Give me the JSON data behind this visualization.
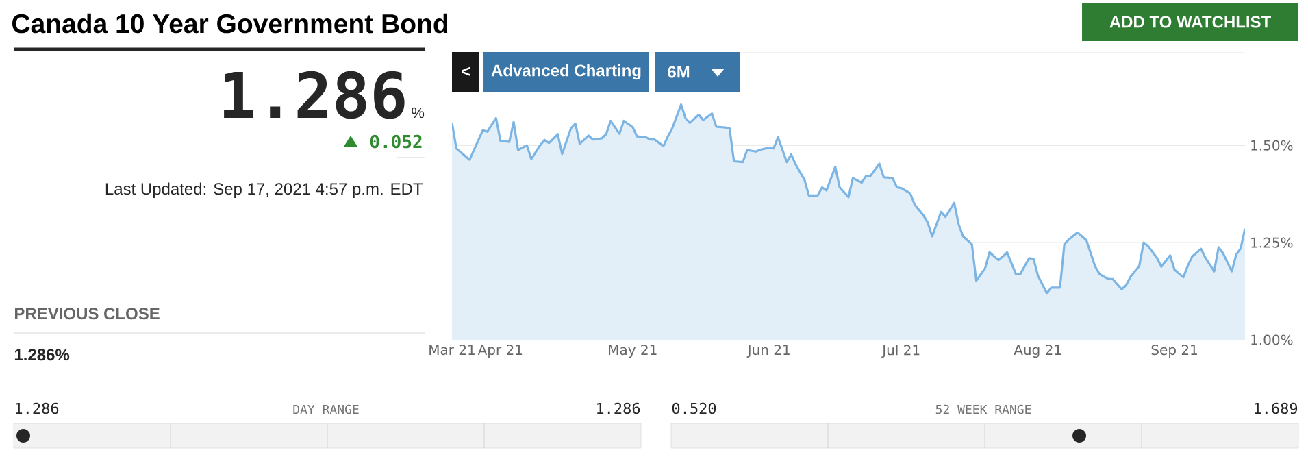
{
  "chart_data": {
    "type": "area",
    "title": "Canada 10 Year Government Bond",
    "x": [
      "2021-03-21",
      "2021-03-22",
      "2021-03-25",
      "2021-03-28",
      "2021-03-29",
      "2021-03-31",
      "2021-04-01",
      "2021-04-03",
      "2021-04-04",
      "2021-04-05",
      "2021-04-07",
      "2021-04-08",
      "2021-04-10",
      "2021-04-11",
      "2021-04-12",
      "2021-04-14",
      "2021-04-15",
      "2021-04-17",
      "2021-04-18",
      "2021-04-19",
      "2021-04-21",
      "2021-04-22",
      "2021-04-24",
      "2021-04-25",
      "2021-04-26",
      "2021-04-28",
      "2021-04-29",
      "2021-05-01",
      "2021-05-02",
      "2021-05-04",
      "2021-05-05",
      "2021-05-06",
      "2021-05-08",
      "2021-05-09",
      "2021-05-10",
      "2021-05-12",
      "2021-05-13",
      "2021-05-14",
      "2021-05-16",
      "2021-05-17",
      "2021-05-19",
      "2021-05-20",
      "2021-05-22",
      "2021-05-23",
      "2021-05-24",
      "2021-05-26",
      "2021-05-27",
      "2021-05-29",
      "2021-05-30",
      "2021-06-01",
      "2021-06-02",
      "2021-06-03",
      "2021-06-05",
      "2021-06-06",
      "2021-06-07",
      "2021-06-09",
      "2021-06-10",
      "2021-06-12",
      "2021-06-13",
      "2021-06-14",
      "2021-06-16",
      "2021-06-17",
      "2021-06-19",
      "2021-06-20",
      "2021-06-22",
      "2021-06-23",
      "2021-06-24",
      "2021-06-26",
      "2021-06-27",
      "2021-06-29",
      "2021-06-30",
      "2021-07-01",
      "2021-07-03",
      "2021-07-04",
      "2021-07-06",
      "2021-07-07",
      "2021-07-08",
      "2021-07-10",
      "2021-07-11",
      "2021-07-13",
      "2021-07-14",
      "2021-07-15",
      "2021-07-17",
      "2021-07-18",
      "2021-07-20",
      "2021-07-21",
      "2021-07-23",
      "2021-07-24",
      "2021-07-25",
      "2021-07-27",
      "2021-07-28",
      "2021-07-30",
      "2021-07-31",
      "2021-08-01",
      "2021-08-03",
      "2021-08-04",
      "2021-08-06",
      "2021-08-07",
      "2021-08-08",
      "2021-08-10",
      "2021-08-11",
      "2021-08-12",
      "2021-08-14",
      "2021-08-15",
      "2021-08-17",
      "2021-08-18",
      "2021-08-20",
      "2021-08-21",
      "2021-08-22",
      "2021-08-24",
      "2021-08-25",
      "2021-08-26",
      "2021-08-28",
      "2021-08-29",
      "2021-08-31",
      "2021-09-01",
      "2021-09-03",
      "2021-09-04",
      "2021-09-05",
      "2021-09-07",
      "2021-09-08",
      "2021-09-10",
      "2021-09-11",
      "2021-09-12",
      "2021-09-14",
      "2021-09-15",
      "2021-09-16",
      "2021-09-17"
    ],
    "series": [
      {
        "color": "#7cb5e4",
        "values": [
          1.558,
          1.492,
          1.463,
          1.539,
          1.535,
          1.57,
          1.512,
          1.509,
          1.56,
          1.488,
          1.5,
          1.465,
          1.5,
          1.514,
          1.506,
          1.529,
          1.478,
          1.544,
          1.556,
          1.504,
          1.525,
          1.515,
          1.518,
          1.529,
          1.563,
          1.53,
          1.563,
          1.547,
          1.523,
          1.521,
          1.515,
          1.515,
          1.498,
          1.523,
          1.544,
          1.605,
          1.57,
          1.558,
          1.579,
          1.565,
          1.582,
          1.548,
          1.546,
          1.544,
          1.459,
          1.457,
          1.488,
          1.484,
          1.489,
          1.494,
          1.492,
          1.521,
          1.457,
          1.477,
          1.451,
          1.412,
          1.371,
          1.371,
          1.392,
          1.384,
          1.445,
          1.392,
          1.367,
          1.416,
          1.404,
          1.422,
          1.422,
          1.453,
          1.418,
          1.416,
          1.392,
          1.39,
          1.377,
          1.348,
          1.32,
          1.301,
          1.266,
          1.329,
          1.316,
          1.352,
          1.297,
          1.266,
          1.246,
          1.152,
          1.184,
          1.225,
          1.205,
          1.214,
          1.225,
          1.169,
          1.169,
          1.21,
          1.208,
          1.165,
          1.12,
          1.134,
          1.134,
          1.246,
          1.258,
          1.276,
          1.266,
          1.256,
          1.188,
          1.169,
          1.156,
          1.156,
          1.13,
          1.14,
          1.162,
          1.19,
          1.25,
          1.241,
          1.211,
          1.188,
          1.217,
          1.18,
          1.161,
          1.19,
          1.214,
          1.234,
          1.211,
          1.176,
          1.238,
          1.223,
          1.176,
          1.219,
          1.235,
          1.286
        ]
      }
    ],
    "xlim": [
      "2021-03-21",
      "2021-09-17"
    ],
    "xticks": [
      {
        "value": "2021-03-21",
        "label": "Mar 21"
      },
      {
        "value": "2021-04-01",
        "label": "Apr 21"
      },
      {
        "value": "2021-05-01",
        "label": "May 21"
      },
      {
        "value": "2021-06-01",
        "label": "Jun 21"
      },
      {
        "value": "2021-07-01",
        "label": "Jul 21"
      },
      {
        "value": "2021-08-01",
        "label": "Aug 21"
      },
      {
        "value": "2021-09-01",
        "label": "Sep 21"
      }
    ],
    "ylim": [
      1.0,
      1.74
    ],
    "yticks": [
      {
        "value": 1.0,
        "label": "1.00%"
      },
      {
        "value": 1.25,
        "label": "1.25%"
      },
      {
        "value": 1.5,
        "label": "1.50%"
      }
    ],
    "grid": "y",
    "annotations": [
      "ADD TO WATCHLIST",
      "Advanced Charting",
      "6M",
      "1.286",
      "%",
      "0.052",
      "Last Updated: Sep 17, 2021 4:57 p.m. EDT",
      "PREVIOUS CLOSE",
      "1.286%",
      "1.286",
      "DAY RANGE",
      "1.286",
      "0.520",
      "52 WEEK RANGE",
      "1.689",
      "<"
    ]
  }
}
